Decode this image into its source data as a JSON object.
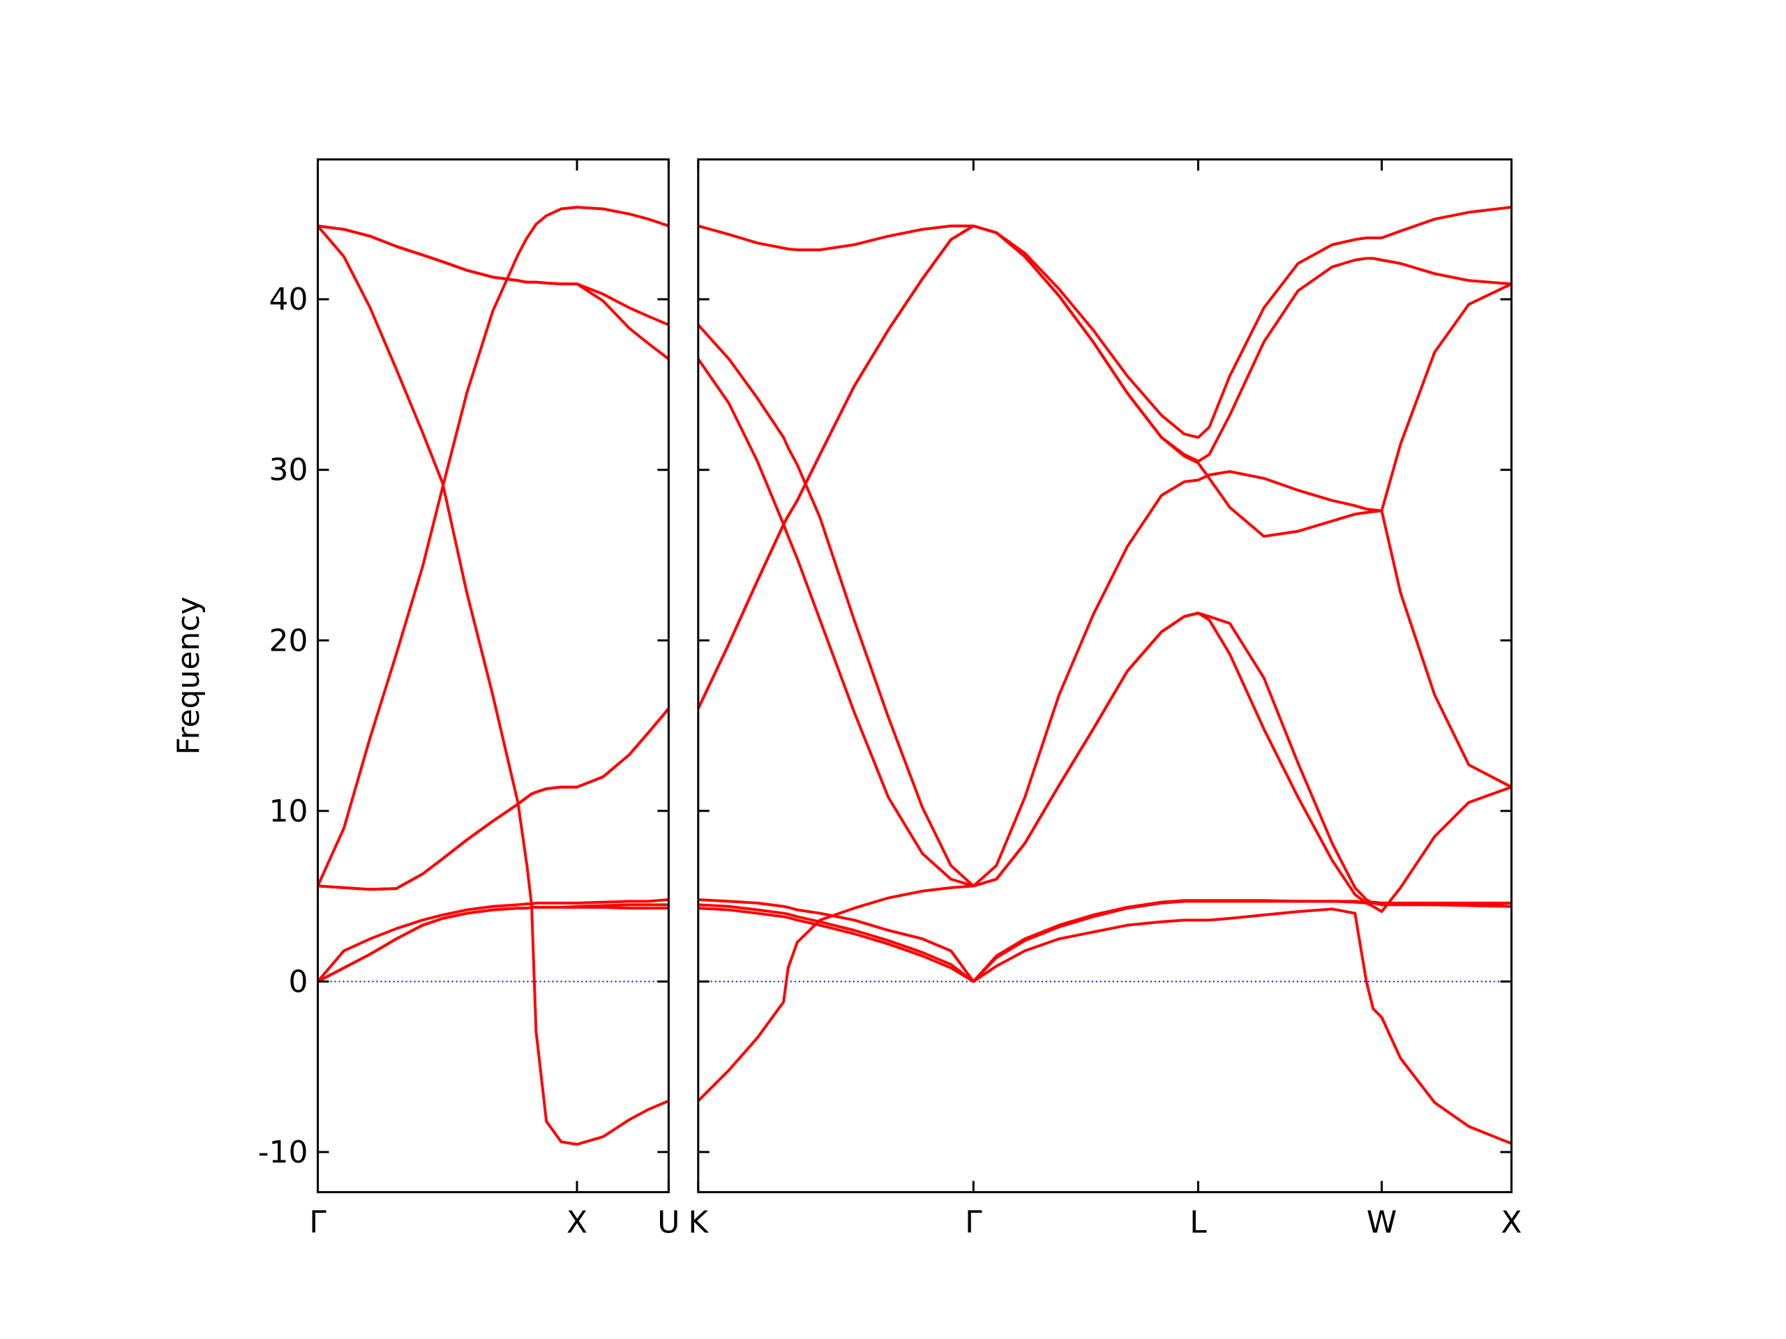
{
  "chart_data": [
    {
      "type": "line",
      "ylabel": "Frequency",
      "x": [
        0,
        0.101,
        0.202,
        0.303,
        0.404,
        0.482,
        0.575,
        0.675,
        0.772,
        0.807,
        0.825,
        0.842,
        0.882,
        0.939,
        1,
        1.101,
        1.202,
        1.276,
        1.3536
      ],
      "xlim": [
        0,
        1.3536
      ],
      "xticks": [
        {
          "value": 0,
          "label": "Γ"
        },
        {
          "value": 1,
          "label": "X"
        },
        {
          "value": 1.3536,
          "label": "U"
        }
      ],
      "ylim": [
        -12.35,
        48.2
      ],
      "yticks": [
        -10,
        0,
        10,
        20,
        30,
        40
      ],
      "hline": {
        "y": 0,
        "color": "#0000ff",
        "style": "dotted"
      },
      "series": [
        {
          "color": "#ff0000",
          "values": [
            0,
            0.8,
            1.6,
            2.5,
            3.3,
            3.7,
            4.0,
            4.2,
            4.3,
            4.3,
            4.35,
            4.35,
            4.35,
            4.35,
            4.35,
            4.35,
            4.3,
            4.3,
            4.3
          ]
        },
        {
          "color": "#ff0000",
          "values": [
            0,
            0.8,
            1.6,
            2.5,
            3.3,
            3.7,
            4.0,
            4.2,
            4.3,
            4.3,
            4.35,
            4.35,
            4.35,
            4.35,
            4.4,
            4.45,
            4.5,
            4.5,
            4.5
          ]
        },
        {
          "color": "#ff0000",
          "values": [
            0,
            1.8,
            2.5,
            3.1,
            3.6,
            3.9,
            4.2,
            4.4,
            4.5,
            4.55,
            4.55,
            4.6,
            4.6,
            4.6,
            4.6,
            4.65,
            4.7,
            4.7,
            4.8
          ]
        },
        {
          "color": "#ff0000",
          "values": [
            44.3,
            42.5,
            39.5,
            35.9,
            32.2,
            29.2,
            22.8,
            16.8,
            10.5,
            6.8,
            4.5,
            -2.9,
            -8.2,
            -9.4,
            -9.55,
            -9.1,
            -8.1,
            -7.5,
            -7.0
          ]
        },
        {
          "color": "#ff0000",
          "values": [
            44.3,
            44.1,
            43.7,
            43.1,
            42.6,
            42.2,
            41.7,
            41.3,
            41.1,
            41.0,
            41.0,
            41.0,
            40.95,
            40.9,
            40.9,
            40.3,
            39.5,
            39.0,
            38.5
          ]
        },
        {
          "color": "#ff0000",
          "values": [
            44.3,
            44.1,
            43.7,
            43.1,
            42.6,
            42.2,
            41.7,
            41.3,
            41.1,
            41.0,
            41.0,
            41.0,
            40.95,
            40.9,
            40.9,
            39.9,
            38.3,
            37.4,
            36.5
          ]
        },
        {
          "color": "#ff0000",
          "values": [
            5.6,
            9.0,
            14.3,
            19.2,
            24.3,
            29.0,
            34.5,
            39.3,
            42.6,
            43.6,
            44.0,
            44.4,
            44.9,
            45.3,
            45.4,
            45.3,
            45.0,
            44.7,
            44.3
          ]
        },
        {
          "color": "#ff0000",
          "values": [
            5.6,
            5.5,
            5.4,
            5.45,
            6.3,
            7.2,
            8.3,
            9.4,
            10.4,
            10.8,
            11.0,
            11.1,
            11.3,
            11.4,
            11.4,
            12.0,
            13.3,
            14.6,
            16.0
          ]
        },
        {
          "color": "#ff0000",
          "values": [
            5.6,
            5.5,
            5.4,
            5.45,
            6.3,
            7.2,
            8.3,
            9.4,
            10.4,
            10.8,
            11.0,
            11.1,
            11.3,
            11.4,
            11.4,
            12.0,
            13.3,
            14.6,
            16.0
          ]
        }
      ]
    },
    {
      "type": "line",
      "x": [
        1.3536,
        1.472,
        1.5817,
        1.6825,
        1.7001,
        1.7352,
        1.8229,
        1.9545,
        2.0861,
        2.2176,
        2.3273,
        2.4142,
        2.5027,
        2.6124,
        2.744,
        2.8755,
        3.0071,
        3.1387,
        3.2264,
        3.2802,
        3.3229,
        3.4018,
        3.5334,
        3.665,
        3.7966,
        3.8843,
        3.9282,
        3.9545,
        3.9873,
        4.0597,
        4.1913,
        4.3229,
        4.4873
      ],
      "xlim": [
        1.3536,
        4.4873
      ],
      "xticks": [
        {
          "value": 1.3536,
          "label": "K"
        },
        {
          "value": 2.4142,
          "label": "Γ"
        },
        {
          "value": 3.2802,
          "label": "L"
        },
        {
          "value": 3.9873,
          "label": "W"
        },
        {
          "value": 4.4873,
          "label": "X"
        }
      ],
      "ylim": [
        -12.35,
        48.2
      ],
      "hline": {
        "y": 0,
        "color": "#0000ff",
        "style": "dotted"
      },
      "series": [
        {
          "color": "#ff0000",
          "values": [
            4.3,
            4.2,
            4.0,
            3.8,
            3.75,
            3.6,
            3.3,
            2.8,
            2.2,
            1.5,
            0.8,
            0,
            0.9,
            1.8,
            2.5,
            2.9,
            3.3,
            3.5,
            3.6,
            3.6,
            3.6,
            3.7,
            3.9,
            4.1,
            4.25,
            4.0,
            0,
            -1.6,
            -2.1,
            -4.5,
            -7.1,
            -8.5,
            -9.5
          ]
        },
        {
          "color": "#ff0000",
          "values": [
            4.5,
            4.4,
            4.2,
            4.0,
            3.95,
            3.8,
            3.5,
            3.0,
            2.4,
            1.7,
            1.0,
            0,
            1.4,
            2.4,
            3.2,
            3.8,
            4.3,
            4.6,
            4.7,
            4.7,
            4.7,
            4.7,
            4.7,
            4.7,
            4.7,
            4.65,
            4.6,
            4.6,
            4.6,
            4.55,
            4.5,
            4.45,
            4.4
          ]
        },
        {
          "color": "#ff0000",
          "values": [
            4.8,
            4.7,
            4.6,
            4.4,
            4.35,
            4.2,
            4.0,
            3.6,
            3.0,
            2.5,
            1.8,
            0,
            1.5,
            2.5,
            3.3,
            3.9,
            4.35,
            4.65,
            4.75,
            4.75,
            4.75,
            4.75,
            4.75,
            4.7,
            4.7,
            4.7,
            4.65,
            4.65,
            4.6,
            4.6,
            4.6,
            4.6,
            4.6
          ]
        },
        {
          "color": "#ff0000",
          "values": [
            -7.0,
            -5.2,
            -3.3,
            -1.2,
            0.8,
            2.3,
            3.6,
            4.3,
            4.9,
            5.3,
            5.5,
            5.6,
            6.0,
            8.1,
            11.5,
            14.8,
            18.2,
            20.5,
            21.4,
            21.6,
            21.2,
            19.2,
            14.8,
            10.8,
            7.1,
            5.1,
            4.6,
            4.4,
            4.1,
            5.5,
            8.5,
            10.5,
            11.4
          ]
        },
        {
          "color": "#ff0000",
          "values": [
            38.5,
            36.5,
            34.2,
            31.9,
            31.3,
            30.3,
            27.2,
            21.2,
            15.5,
            10.2,
            6.8,
            5.6,
            6.0,
            8.1,
            11.5,
            14.8,
            18.2,
            20.5,
            21.4,
            21.6,
            21.4,
            21.0,
            17.8,
            12.8,
            8.1,
            5.5,
            4.8,
            4.6,
            4.5,
            4.5,
            4.5,
            4.5,
            4.6
          ]
        },
        {
          "color": "#ff0000",
          "values": [
            36.5,
            33.9,
            30.5,
            26.8,
            26.1,
            24.8,
            21.2,
            15.8,
            10.8,
            7.5,
            6.0,
            5.6,
            6.8,
            10.8,
            16.8,
            21.5,
            25.5,
            28.5,
            29.3,
            29.4,
            29.7,
            29.9,
            29.5,
            28.8,
            28.2,
            27.9,
            27.7,
            27.65,
            27.6,
            22.8,
            16.8,
            12.7,
            11.4
          ]
        },
        {
          "color": "#ff0000",
          "values": [
            44.3,
            43.8,
            43.3,
            43.0,
            42.95,
            42.9,
            42.9,
            43.2,
            43.7,
            44.1,
            44.3,
            44.3,
            43.9,
            42.7,
            40.6,
            38.2,
            35.5,
            33.2,
            32.1,
            31.9,
            32.5,
            35.5,
            39.5,
            42.1,
            43.2,
            43.5,
            43.6,
            43.6,
            43.6,
            44.0,
            44.7,
            45.1,
            45.4
          ]
        },
        {
          "color": "#ff0000",
          "values": [
            16.0,
            19.8,
            23.5,
            26.8,
            27.3,
            28.2,
            30.9,
            34.9,
            38.2,
            41.2,
            43.5,
            44.3,
            43.9,
            42.5,
            40.2,
            37.5,
            34.5,
            31.9,
            30.9,
            30.5,
            30.9,
            33.2,
            37.5,
            40.5,
            41.9,
            42.3,
            42.4,
            42.4,
            42.3,
            42.1,
            41.5,
            41.1,
            40.9
          ]
        },
        {
          "color": "#ff0000",
          "values": [
            16.0,
            19.8,
            23.5,
            26.8,
            27.3,
            28.2,
            30.9,
            34.9,
            38.2,
            41.2,
            43.5,
            44.3,
            43.9,
            42.5,
            40.2,
            37.5,
            34.5,
            31.9,
            30.8,
            30.4,
            29.5,
            27.8,
            26.1,
            26.4,
            27.0,
            27.4,
            27.5,
            27.55,
            27.6,
            31.5,
            36.9,
            39.7,
            40.9
          ]
        }
      ]
    }
  ]
}
